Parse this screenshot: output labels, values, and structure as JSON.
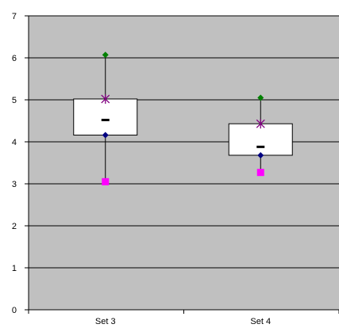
{
  "chart_data": {
    "type": "box",
    "categories": [
      "Set 3",
      "Set 4"
    ],
    "ylim": [
      0,
      7
    ],
    "yticks": [
      "0",
      "1",
      "2",
      "3",
      "4",
      "5",
      "6",
      "7"
    ],
    "grid": true,
    "colors": {
      "plot_area": "#c0c0c0",
      "gridline": "#000000",
      "box_fill": "#ffffff",
      "max_marker": "#008000",
      "q3_marker": "#800080",
      "q1_marker": "#000080",
      "min_marker": "#ff00ff",
      "median_marker": "#000000"
    },
    "series": [
      {
        "category": "Set 3",
        "max": 6.07,
        "q3": 5.02,
        "median": 4.52,
        "q1": 4.16,
        "min": 3.05
      },
      {
        "category": "Set 4",
        "max": 5.05,
        "q3": 4.43,
        "median": 3.88,
        "q1": 3.68,
        "min": 3.27
      }
    ]
  }
}
